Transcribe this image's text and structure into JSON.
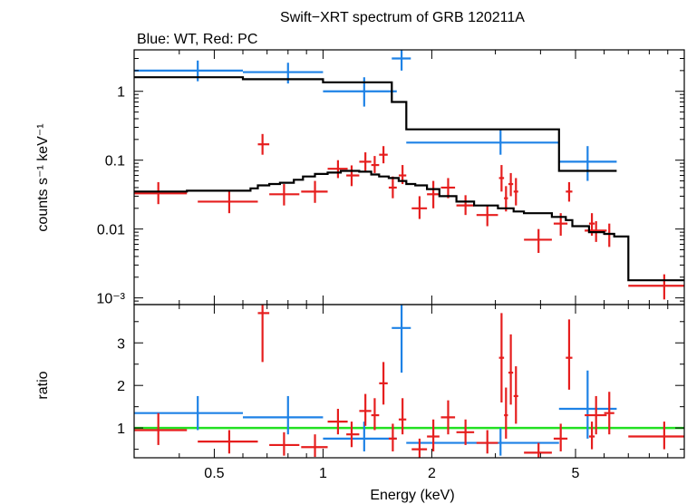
{
  "chart_data": [
    {
      "type": "scatter",
      "panel": "top",
      "title": "Swift−XRT spectrum of GRB 120211A",
      "subtitle": "Blue: WT, Red: PC",
      "ylabel": "counts s⁻¹ keV⁻¹",
      "xscale": "log",
      "yscale": "log",
      "xlim": [
        0.3,
        10
      ],
      "ylim": [
        0.0008,
        4
      ],
      "y_ticks": [
        {
          "v": 1,
          "label": "1"
        },
        {
          "v": 0.1,
          "label": "0.1"
        },
        {
          "v": 0.01,
          "label": "0.01"
        },
        {
          "v": 0.001,
          "label": "10⁻³"
        }
      ],
      "series": [
        {
          "color": "#1e82e6",
          "points": [
            {
              "x": 0.45,
              "xlo": 0.3,
              "xhi": 0.6,
              "y": 2.0,
              "ylo": 1.4,
              "yhi": 2.8
            },
            {
              "x": 0.8,
              "xlo": 0.6,
              "xhi": 1.0,
              "y": 1.9,
              "ylo": 1.3,
              "yhi": 2.6
            },
            {
              "x": 1.3,
              "xlo": 1.0,
              "xhi": 1.6,
              "y": 1.0,
              "ylo": 0.6,
              "yhi": 1.6
            },
            {
              "x": 1.65,
              "xlo": 1.55,
              "xhi": 1.75,
              "y": 3.0,
              "ylo": 2.0,
              "yhi": 4.0
            },
            {
              "x": 3.1,
              "xlo": 1.7,
              "xhi": 4.5,
              "y": 0.18,
              "ylo": 0.12,
              "yhi": 0.28
            },
            {
              "x": 5.4,
              "xlo": 4.5,
              "xhi": 6.5,
              "y": 0.095,
              "ylo": 0.05,
              "yhi": 0.16
            }
          ]
        },
        {
          "color": "#e61e1e",
          "points": [
            {
              "x": 0.35,
              "xlo": 0.3,
              "xhi": 0.42,
              "y": 0.033,
              "ylo": 0.023,
              "yhi": 0.048
            },
            {
              "x": 0.55,
              "xlo": 0.45,
              "xhi": 0.66,
              "y": 0.025,
              "ylo": 0.017,
              "yhi": 0.036
            },
            {
              "x": 0.68,
              "xlo": 0.66,
              "xhi": 0.71,
              "y": 0.17,
              "ylo": 0.12,
              "yhi": 0.24
            },
            {
              "x": 0.78,
              "xlo": 0.71,
              "xhi": 0.86,
              "y": 0.032,
              "ylo": 0.022,
              "yhi": 0.045
            },
            {
              "x": 0.95,
              "xlo": 0.87,
              "xhi": 1.03,
              "y": 0.035,
              "ylo": 0.024,
              "yhi": 0.05
            },
            {
              "x": 1.1,
              "xlo": 1.03,
              "xhi": 1.17,
              "y": 0.075,
              "ylo": 0.055,
              "yhi": 0.1
            },
            {
              "x": 1.2,
              "xlo": 1.16,
              "xhi": 1.26,
              "y": 0.06,
              "ylo": 0.042,
              "yhi": 0.084
            },
            {
              "x": 1.31,
              "xlo": 1.26,
              "xhi": 1.36,
              "y": 0.095,
              "ylo": 0.07,
              "yhi": 0.13
            },
            {
              "x": 1.39,
              "xlo": 1.36,
              "xhi": 1.43,
              "y": 0.085,
              "ylo": 0.065,
              "yhi": 0.115
            },
            {
              "x": 1.47,
              "xlo": 1.43,
              "xhi": 1.51,
              "y": 0.12,
              "ylo": 0.09,
              "yhi": 0.16
            },
            {
              "x": 1.56,
              "xlo": 1.52,
              "xhi": 1.6,
              "y": 0.04,
              "ylo": 0.028,
              "yhi": 0.058
            },
            {
              "x": 1.66,
              "xlo": 1.62,
              "xhi": 1.7,
              "y": 0.06,
              "ylo": 0.045,
              "yhi": 0.085
            },
            {
              "x": 1.85,
              "xlo": 1.76,
              "xhi": 1.94,
              "y": 0.02,
              "ylo": 0.014,
              "yhi": 0.03
            },
            {
              "x": 2.02,
              "xlo": 1.94,
              "xhi": 2.1,
              "y": 0.032,
              "ylo": 0.02,
              "yhi": 0.05
            },
            {
              "x": 2.22,
              "xlo": 2.12,
              "xhi": 2.32,
              "y": 0.04,
              "ylo": 0.028,
              "yhi": 0.055
            },
            {
              "x": 2.48,
              "xlo": 2.34,
              "xhi": 2.62,
              "y": 0.022,
              "ylo": 0.016,
              "yhi": 0.031
            },
            {
              "x": 2.85,
              "xlo": 2.66,
              "xhi": 3.05,
              "y": 0.016,
              "ylo": 0.011,
              "yhi": 0.022
            },
            {
              "x": 3.12,
              "xlo": 3.07,
              "xhi": 3.17,
              "y": 0.055,
              "ylo": 0.035,
              "yhi": 0.085
            },
            {
              "x": 3.21,
              "xlo": 3.17,
              "xhi": 3.25,
              "y": 0.028,
              "ylo": 0.018,
              "yhi": 0.042
            },
            {
              "x": 3.31,
              "xlo": 3.26,
              "xhi": 3.36,
              "y": 0.045,
              "ylo": 0.03,
              "yhi": 0.065
            },
            {
              "x": 3.42,
              "xlo": 3.37,
              "xhi": 3.47,
              "y": 0.035,
              "ylo": 0.022,
              "yhi": 0.055
            },
            {
              "x": 3.95,
              "xlo": 3.6,
              "xhi": 4.3,
              "y": 0.007,
              "ylo": 0.0045,
              "yhi": 0.01
            },
            {
              "x": 4.55,
              "xlo": 4.35,
              "xhi": 4.75,
              "y": 0.012,
              "ylo": 0.008,
              "yhi": 0.017
            },
            {
              "x": 4.8,
              "xlo": 4.7,
              "xhi": 4.9,
              "y": 0.035,
              "ylo": 0.025,
              "yhi": 0.048
            },
            {
              "x": 5.7,
              "xlo": 5.3,
              "xhi": 6.1,
              "y": 0.0095,
              "ylo": 0.0065,
              "yhi": 0.013
            },
            {
              "x": 5.55,
              "xlo": 5.45,
              "xhi": 5.65,
              "y": 0.012,
              "ylo": 0.008,
              "yhi": 0.017
            },
            {
              "x": 6.2,
              "xlo": 6.0,
              "xhi": 6.4,
              "y": 0.0085,
              "ylo": 0.0055,
              "yhi": 0.012
            },
            {
              "x": 8.8,
              "xlo": 7.0,
              "xhi": 10.0,
              "y": 0.0015,
              "ylo": 0.00095,
              "yhi": 0.0022
            }
          ]
        }
      ],
      "model": [
        {
          "color": "#000000",
          "steps": [
            {
              "x1": 0.3,
              "x2": 0.6,
              "y": 1.6
            },
            {
              "x1": 0.6,
              "x2": 1.0,
              "y": 1.5
            },
            {
              "x1": 1.0,
              "x2": 1.55,
              "y": 1.35
            },
            {
              "x1": 1.55,
              "x2": 1.7,
              "y": 0.7
            },
            {
              "x1": 1.7,
              "x2": 4.5,
              "y": 0.28
            },
            {
              "x1": 4.5,
              "x2": 6.5,
              "y": 0.07
            }
          ]
        },
        {
          "color": "#000000",
          "steps": [
            {
              "x1": 0.3,
              "x2": 0.42,
              "y": 0.035
            },
            {
              "x1": 0.42,
              "x2": 0.63,
              "y": 0.036
            },
            {
              "x1": 0.63,
              "x2": 0.66,
              "y": 0.039
            },
            {
              "x1": 0.66,
              "x2": 0.71,
              "y": 0.043
            },
            {
              "x1": 0.71,
              "x2": 0.76,
              "y": 0.045
            },
            {
              "x1": 0.76,
              "x2": 0.83,
              "y": 0.047
            },
            {
              "x1": 0.83,
              "x2": 0.88,
              "y": 0.052
            },
            {
              "x1": 0.88,
              "x2": 0.95,
              "y": 0.058
            },
            {
              "x1": 0.95,
              "x2": 1.03,
              "y": 0.063
            },
            {
              "x1": 1.03,
              "x2": 1.12,
              "y": 0.066
            },
            {
              "x1": 1.12,
              "x2": 1.26,
              "y": 0.07
            },
            {
              "x1": 1.26,
              "x2": 1.36,
              "y": 0.068
            },
            {
              "x1": 1.36,
              "x2": 1.43,
              "y": 0.062
            },
            {
              "x1": 1.43,
              "x2": 1.52,
              "y": 0.058
            },
            {
              "x1": 1.52,
              "x2": 1.62,
              "y": 0.055
            },
            {
              "x1": 1.62,
              "x2": 1.7,
              "y": 0.05
            },
            {
              "x1": 1.7,
              "x2": 1.8,
              "y": 0.045
            },
            {
              "x1": 1.8,
              "x2": 1.94,
              "y": 0.043
            },
            {
              "x1": 1.94,
              "x2": 2.1,
              "y": 0.038
            },
            {
              "x1": 2.1,
              "x2": 2.34,
              "y": 0.03
            },
            {
              "x1": 2.34,
              "x2": 2.62,
              "y": 0.025
            },
            {
              "x1": 2.62,
              "x2": 3.05,
              "y": 0.022
            },
            {
              "x1": 3.05,
              "x2": 3.37,
              "y": 0.02
            },
            {
              "x1": 3.37,
              "x2": 3.6,
              "y": 0.018
            },
            {
              "x1": 3.6,
              "x2": 4.3,
              "y": 0.017
            },
            {
              "x1": 4.3,
              "x2": 4.7,
              "y": 0.015
            },
            {
              "x1": 4.7,
              "x2": 4.9,
              "y": 0.0135
            },
            {
              "x1": 4.9,
              "x2": 5.45,
              "y": 0.011
            },
            {
              "x1": 5.45,
              "x2": 6.0,
              "y": 0.009
            },
            {
              "x1": 6.0,
              "x2": 6.4,
              "y": 0.0085
            },
            {
              "x1": 6.4,
              "x2": 7.0,
              "y": 0.0078
            },
            {
              "x1": 7.0,
              "x2": 10.0,
              "y": 0.0018
            }
          ]
        }
      ]
    },
    {
      "type": "scatter",
      "panel": "bottom",
      "xlabel": "Energy (keV)",
      "ylabel": "ratio",
      "xscale": "log",
      "yscale": "linear",
      "xlim": [
        0.3,
        10
      ],
      "ylim": [
        0.3,
        3.9
      ],
      "x_ticks": [
        {
          "v": 0.5,
          "label": "0.5"
        },
        {
          "v": 1,
          "label": "1"
        },
        {
          "v": 2,
          "label": "2"
        },
        {
          "v": 5,
          "label": "5"
        }
      ],
      "y_ticks": [
        {
          "v": 1,
          "label": "1"
        },
        {
          "v": 2,
          "label": "2"
        },
        {
          "v": 3,
          "label": "3"
        }
      ],
      "reference_line": {
        "y": 1,
        "color": "#22e022"
      },
      "series": [
        {
          "color": "#1e82e6",
          "points": [
            {
              "x": 0.45,
              "xlo": 0.3,
              "xhi": 0.6,
              "y": 1.35,
              "ylo": 0.95,
              "yhi": 1.75
            },
            {
              "x": 0.8,
              "xlo": 0.6,
              "xhi": 1.0,
              "y": 1.25,
              "ylo": 0.85,
              "yhi": 1.75
            },
            {
              "x": 1.3,
              "xlo": 1.0,
              "xhi": 1.6,
              "y": 0.75,
              "ylo": 0.45,
              "yhi": 1.15
            },
            {
              "x": 1.65,
              "xlo": 1.55,
              "xhi": 1.75,
              "y": 3.35,
              "ylo": 2.3,
              "yhi": 3.9
            },
            {
              "x": 3.1,
              "xlo": 1.7,
              "xhi": 4.5,
              "y": 0.65,
              "ylo": 0.35,
              "yhi": 1.0
            },
            {
              "x": 5.4,
              "xlo": 4.5,
              "xhi": 6.5,
              "y": 1.45,
              "ylo": 0.75,
              "yhi": 2.35
            }
          ]
        },
        {
          "color": "#e61e1e",
          "points": [
            {
              "x": 0.35,
              "xlo": 0.3,
              "xhi": 0.42,
              "y": 0.95,
              "ylo": 0.6,
              "yhi": 1.35
            },
            {
              "x": 0.55,
              "xlo": 0.45,
              "xhi": 0.66,
              "y": 0.68,
              "ylo": 0.4,
              "yhi": 0.95
            },
            {
              "x": 0.68,
              "xlo": 0.66,
              "xhi": 0.71,
              "y": 3.7,
              "ylo": 2.55,
              "yhi": 3.9
            },
            {
              "x": 0.78,
              "xlo": 0.71,
              "xhi": 0.86,
              "y": 0.6,
              "ylo": 0.35,
              "yhi": 0.9
            },
            {
              "x": 0.95,
              "xlo": 0.87,
              "xhi": 1.03,
              "y": 0.55,
              "ylo": 0.32,
              "yhi": 0.85
            },
            {
              "x": 1.1,
              "xlo": 1.03,
              "xhi": 1.17,
              "y": 1.15,
              "ylo": 0.85,
              "yhi": 1.45
            },
            {
              "x": 1.2,
              "xlo": 1.16,
              "xhi": 1.26,
              "y": 0.85,
              "ylo": 0.55,
              "yhi": 1.15
            },
            {
              "x": 1.31,
              "xlo": 1.26,
              "xhi": 1.36,
              "y": 1.4,
              "ylo": 1.05,
              "yhi": 1.8
            },
            {
              "x": 1.39,
              "xlo": 1.36,
              "xhi": 1.43,
              "y": 1.3,
              "ylo": 0.95,
              "yhi": 1.7
            },
            {
              "x": 1.47,
              "xlo": 1.43,
              "xhi": 1.51,
              "y": 2.05,
              "ylo": 1.55,
              "yhi": 2.55
            },
            {
              "x": 1.56,
              "xlo": 1.52,
              "xhi": 1.6,
              "y": 0.75,
              "ylo": 0.45,
              "yhi": 1.1
            },
            {
              "x": 1.66,
              "xlo": 1.62,
              "xhi": 1.7,
              "y": 1.2,
              "ylo": 0.85,
              "yhi": 1.7
            },
            {
              "x": 1.85,
              "xlo": 1.76,
              "xhi": 1.94,
              "y": 0.5,
              "ylo": 0.3,
              "yhi": 0.75
            },
            {
              "x": 2.02,
              "xlo": 1.94,
              "xhi": 2.1,
              "y": 0.8,
              "ylo": 0.45,
              "yhi": 1.2
            },
            {
              "x": 2.22,
              "xlo": 2.12,
              "xhi": 2.32,
              "y": 1.25,
              "ylo": 0.85,
              "yhi": 1.65
            },
            {
              "x": 2.48,
              "xlo": 2.34,
              "xhi": 2.62,
              "y": 0.9,
              "ylo": 0.6,
              "yhi": 1.2
            },
            {
              "x": 2.85,
              "xlo": 2.66,
              "xhi": 3.05,
              "y": 0.65,
              "ylo": 0.4,
              "yhi": 0.95
            },
            {
              "x": 3.12,
              "xlo": 3.07,
              "xhi": 3.17,
              "y": 2.65,
              "ylo": 1.6,
              "yhi": 3.7
            },
            {
              "x": 3.21,
              "xlo": 3.17,
              "xhi": 3.25,
              "y": 1.3,
              "ylo": 0.75,
              "yhi": 1.95
            },
            {
              "x": 3.31,
              "xlo": 3.26,
              "xhi": 3.36,
              "y": 2.3,
              "ylo": 1.55,
              "yhi": 3.2
            },
            {
              "x": 3.42,
              "xlo": 3.37,
              "xhi": 3.47,
              "y": 1.75,
              "ylo": 1.1,
              "yhi": 2.45
            },
            {
              "x": 3.95,
              "xlo": 3.6,
              "xhi": 4.3,
              "y": 0.42,
              "ylo": 0.3,
              "yhi": 0.65
            },
            {
              "x": 4.55,
              "xlo": 4.35,
              "xhi": 4.75,
              "y": 0.75,
              "ylo": 0.45,
              "yhi": 1.1
            },
            {
              "x": 4.8,
              "xlo": 4.7,
              "xhi": 4.9,
              "y": 2.65,
              "ylo": 1.9,
              "yhi": 3.55
            },
            {
              "x": 5.7,
              "xlo": 5.3,
              "xhi": 6.1,
              "y": 1.3,
              "ylo": 0.85,
              "yhi": 1.75
            },
            {
              "x": 5.55,
              "xlo": 5.45,
              "xhi": 5.65,
              "y": 0.8,
              "ylo": 0.5,
              "yhi": 1.15
            },
            {
              "x": 6.2,
              "xlo": 6.0,
              "xhi": 6.4,
              "y": 1.35,
              "ylo": 0.85,
              "yhi": 1.85
            },
            {
              "x": 8.8,
              "xlo": 7.0,
              "xhi": 10.0,
              "y": 0.8,
              "ylo": 0.5,
              "yhi": 1.15
            }
          ]
        }
      ]
    }
  ]
}
